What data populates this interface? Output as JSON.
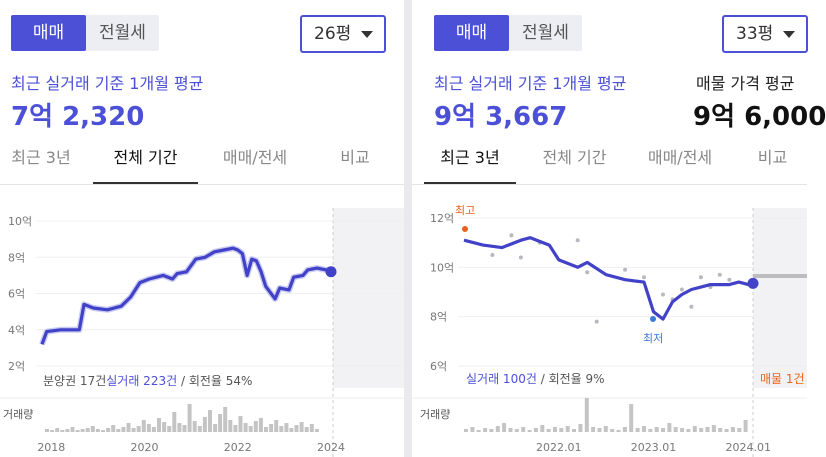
{
  "left": {
    "tabs_toggle": [
      "매매",
      "전월세"
    ],
    "size": "26평",
    "subtitle": "최근 실거래 기준 1개월 평균",
    "price": "7억 2,320",
    "period_tabs": [
      "최근 3년",
      "전체 기간",
      "매매/전세",
      "비교"
    ],
    "active_period": 1,
    "y_ticks": [
      "10억",
      "8억",
      "6억",
      "4억",
      "2억"
    ],
    "x_ticks": [
      "2018",
      "2020",
      "2022",
      "2024"
    ],
    "summary": {
      "part1": "분양권 17건",
      "part2": "실거래 223건",
      "part3": " / 회전율 54%"
    },
    "volume_label": "거래량",
    "accent": "#4b50d6"
  },
  "right": {
    "tabs_toggle": [
      "매매",
      "전월세"
    ],
    "size": "33평",
    "subtitle": "최근 실거래 기준 1개월 평균",
    "price": "9억 3,667",
    "listing_title": "매물 가격 평균",
    "listing_price": "9억 6,000",
    "period_tabs": [
      "최근 3년",
      "전체 기간",
      "매매/전세",
      "비교"
    ],
    "active_period": 0,
    "y_ticks": [
      "12억",
      "10억",
      "8억",
      "6억"
    ],
    "x_ticks": [
      "2022.01",
      "2023.01",
      "2024.01"
    ],
    "max_label": "최고",
    "min_label": "최저",
    "summary": {
      "part1": "실거래 100건",
      "part2": " / 회전율 9%"
    },
    "listing_count": "매물 1건",
    "volume_label": "거래량",
    "max_color": "#e8621b",
    "min_color": "#3a7bd5"
  },
  "chart_data": [
    {
      "type": "line",
      "ylabel": "",
      "ylim": [
        2,
        10
      ],
      "x": [
        2017.8,
        2017.9,
        2018.2,
        2018.6,
        2018.7,
        2018.9,
        2019.2,
        2019.5,
        2019.7,
        2019.9,
        2020.1,
        2020.4,
        2020.6,
        2020.7,
        2020.9,
        2021.1,
        2021.3,
        2021.5,
        2021.7,
        2021.9,
        2022.0,
        2022.1,
        2022.2,
        2022.3,
        2022.4,
        2022.5,
        2022.6,
        2022.8,
        2022.9,
        2023.1,
        2023.2,
        2023.4,
        2023.5,
        2023.7,
        2023.9,
        2024.0
      ],
      "series": [
        {
          "values": [
            3.2,
            3.9,
            4.0,
            4.0,
            5.4,
            5.2,
            5.1,
            5.3,
            5.8,
            6.6,
            6.8,
            7.0,
            6.8,
            7.1,
            7.2,
            7.9,
            8.0,
            8.3,
            8.4,
            8.5,
            8.4,
            8.2,
            7.0,
            7.9,
            7.8,
            7.2,
            6.4,
            5.7,
            6.3,
            6.2,
            6.9,
            7.0,
            7.3,
            7.4,
            7.3,
            7.2
          ]
        }
      ],
      "x_ticks": [
        "2018",
        "2020",
        "2022",
        "2024"
      ]
    },
    {
      "type": "line",
      "ylabel": "",
      "ylim": [
        6,
        12
      ],
      "x": [
        2021.0,
        2021.2,
        2021.4,
        2021.6,
        2021.7,
        2021.9,
        2022.0,
        2022.2,
        2022.3,
        2022.5,
        2022.7,
        2022.9,
        2023.0,
        2023.1,
        2023.2,
        2023.3,
        2023.4,
        2023.5,
        2023.6,
        2023.8,
        2023.9,
        2024.0,
        2024.05
      ],
      "series": [
        {
          "values": [
            11.1,
            10.9,
            10.8,
            11.1,
            11.2,
            10.9,
            10.3,
            10.0,
            10.2,
            9.7,
            9.5,
            9.4,
            8.2,
            7.9,
            8.6,
            8.9,
            9.1,
            9.2,
            9.3,
            9.3,
            9.4,
            9.3,
            9.35
          ]
        }
      ],
      "x_ticks": [
        "2022.01",
        "2023.01",
        "2024.01"
      ]
    }
  ]
}
